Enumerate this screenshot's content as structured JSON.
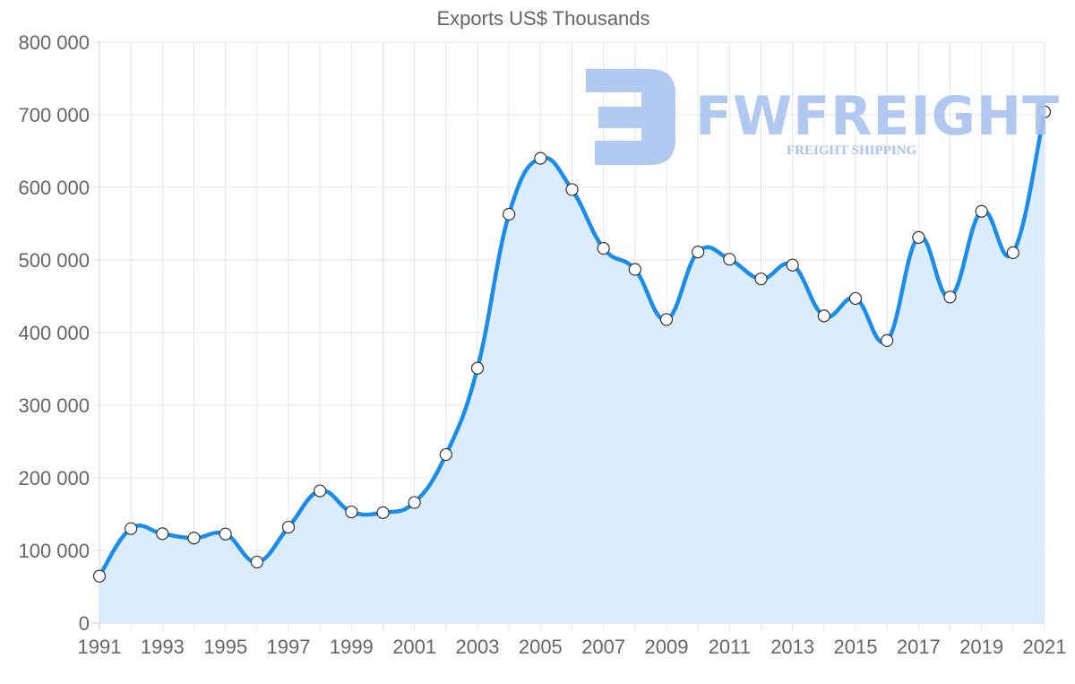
{
  "chart_data": {
    "type": "area",
    "title": "Exports US$ Thousands",
    "xlabel": "",
    "ylabel": "",
    "ylim": [
      0,
      800000
    ],
    "yticks": [
      "0",
      "100 000",
      "200 000",
      "300 000",
      "400 000",
      "500 000",
      "600 000",
      "700 000",
      "800 000"
    ],
    "xtick_labels": [
      "1991",
      "1993",
      "1995",
      "1997",
      "1999",
      "2001",
      "2003",
      "2005",
      "2007",
      "2009",
      "2011",
      "2013",
      "2015",
      "2017",
      "2019",
      "2021"
    ],
    "grid": true,
    "legend": null,
    "categories": [
      1991,
      1992,
      1993,
      1994,
      1995,
      1996,
      1997,
      1998,
      1999,
      2000,
      2001,
      2002,
      2003,
      2004,
      2005,
      2006,
      2007,
      2008,
      2009,
      2010,
      2011,
      2012,
      2013,
      2014,
      2015,
      2016,
      2017,
      2018,
      2019,
      2020,
      2021
    ],
    "series": [
      {
        "name": "Exports US$ Thousands",
        "values": [
          64600,
          130000,
          123000,
          117000,
          122600,
          84000,
          132000,
          182000,
          153000,
          152000,
          166000,
          232000,
          351000,
          563000,
          640000,
          597000,
          516000,
          487000,
          418000,
          511000,
          501000,
          474000,
          493000,
          423000,
          447000,
          389000,
          531000,
          449000,
          567000,
          510000,
          704000
        ],
        "line_color": "#1a8ceb",
        "fill_color": "#d9ecfc",
        "point_fill": "#ffffff",
        "point_stroke": "#333333"
      }
    ]
  },
  "watermark": {
    "name": "FWFREIGHT",
    "subtitle": "FREIGHT SHIPPING",
    "color": "#a9c4f0"
  }
}
